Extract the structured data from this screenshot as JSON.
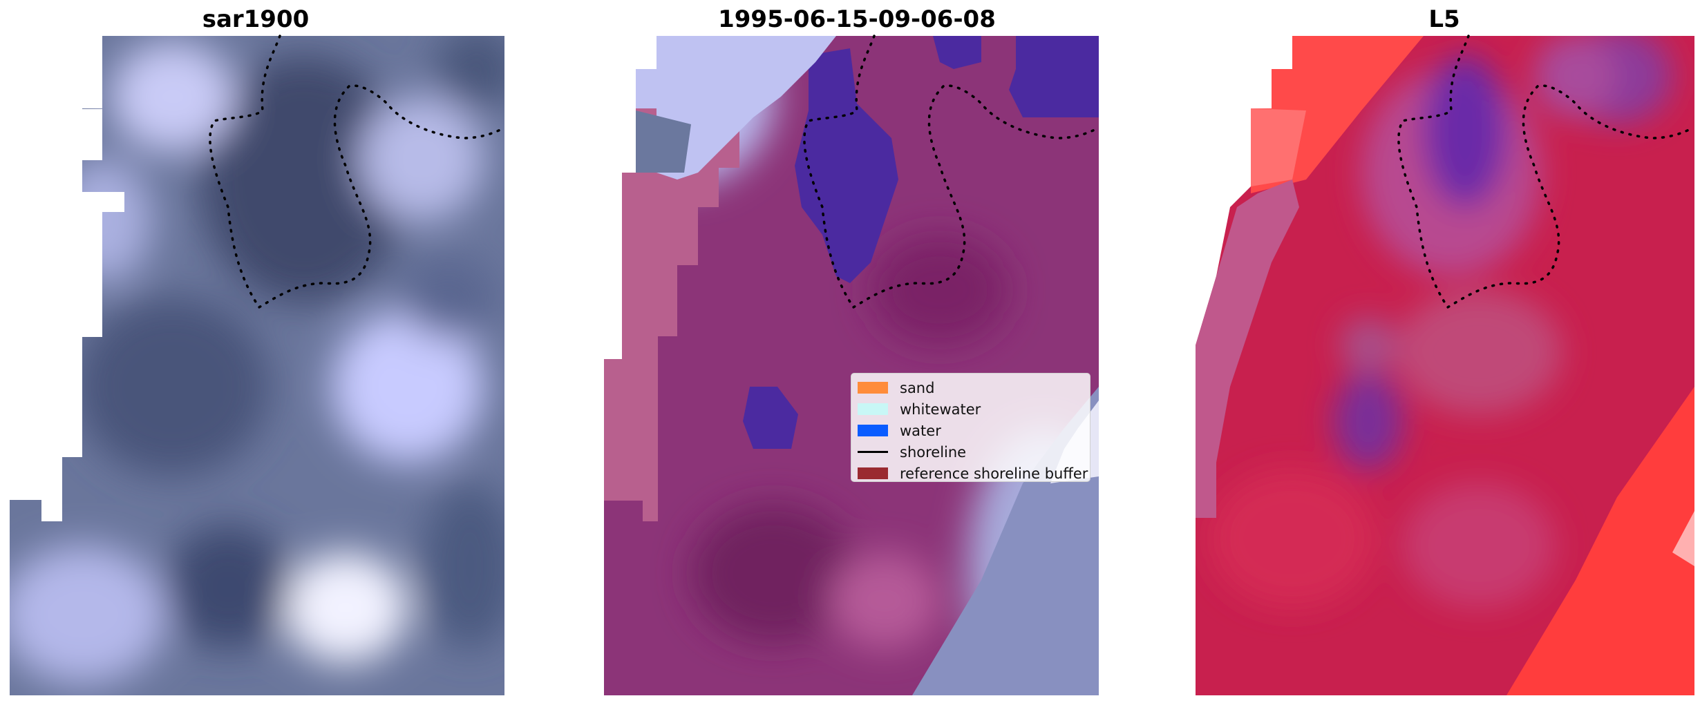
{
  "figure": {
    "panels": [
      {
        "title": "sar1900",
        "kind": "satellite-image"
      },
      {
        "title": "1995-06-15-09-06-08",
        "kind": "classification-overlay"
      },
      {
        "title": "L5",
        "kind": "probability-overlay"
      }
    ],
    "legend": {
      "placement": "center-right of middle panel",
      "items": [
        {
          "label": "sand",
          "color": "#ff8c3a",
          "symbol": "patch"
        },
        {
          "label": "whitewater",
          "color": "#c8f7f6",
          "symbol": "patch"
        },
        {
          "label": "water",
          "color": "#0a5cff",
          "symbol": "patch"
        },
        {
          "label": "shoreline",
          "color": "#000000",
          "symbol": "line"
        },
        {
          "label": "reference shoreline buffer",
          "color": "#9a2a30",
          "symbol": "patch"
        }
      ]
    },
    "colors": {
      "image_dark": "#4a5577",
      "image_light": "#cfd0ff",
      "classification_magenta": "#8c3478",
      "classification_water_purple": "#4b2aa0",
      "buffer_pink": "#b8608e",
      "l5_crimson": "#c8204e",
      "l5_red": "#ff3b3b",
      "l5_purple": "#5c1fa0",
      "shoreline": "#000000"
    }
  }
}
